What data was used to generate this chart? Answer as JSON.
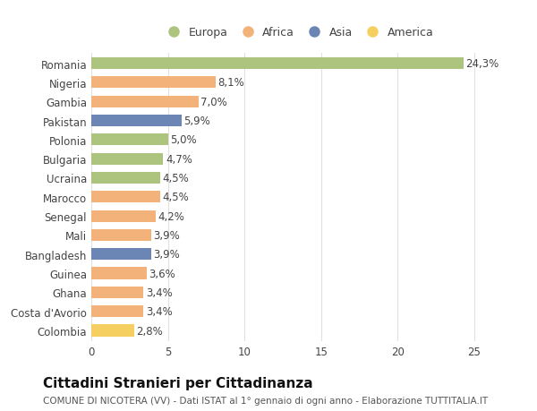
{
  "countries": [
    "Romania",
    "Nigeria",
    "Gambia",
    "Pakistan",
    "Polonia",
    "Bulgaria",
    "Ucraina",
    "Marocco",
    "Senegal",
    "Mali",
    "Bangladesh",
    "Guinea",
    "Ghana",
    "Costa d'Avorio",
    "Colombia"
  ],
  "values": [
    24.3,
    8.1,
    7.0,
    5.9,
    5.0,
    4.7,
    4.5,
    4.5,
    4.2,
    3.9,
    3.9,
    3.6,
    3.4,
    3.4,
    2.8
  ],
  "labels": [
    "24,3%",
    "8,1%",
    "7,0%",
    "5,9%",
    "5,0%",
    "4,7%",
    "4,5%",
    "4,5%",
    "4,2%",
    "3,9%",
    "3,9%",
    "3,6%",
    "3,4%",
    "3,4%",
    "2,8%"
  ],
  "colors": [
    "#adc47e",
    "#f2b27a",
    "#f2b27a",
    "#6b85b5",
    "#adc47e",
    "#adc47e",
    "#adc47e",
    "#f2b27a",
    "#f2b27a",
    "#f2b27a",
    "#6b85b5",
    "#f2b27a",
    "#f2b27a",
    "#f2b27a",
    "#f5d060"
  ],
  "legend_labels": [
    "Europa",
    "Africa",
    "Asia",
    "America"
  ],
  "legend_colors": [
    "#adc47e",
    "#f2b27a",
    "#6b85b5",
    "#f5d060"
  ],
  "title": "Cittadini Stranieri per Cittadinanza",
  "subtitle": "COMUNE DI NICOTERA (VV) - Dati ISTAT al 1° gennaio di ogni anno - Elaborazione TUTTITALIA.IT",
  "xlim": [
    0,
    27
  ],
  "xticks": [
    0,
    5,
    10,
    15,
    20,
    25
  ],
  "bg_color": "#ffffff",
  "grid_color": "#e0e0e0",
  "bar_height": 0.62,
  "label_fontsize": 8.5,
  "tick_fontsize": 8.5,
  "title_fontsize": 11,
  "subtitle_fontsize": 7.5
}
